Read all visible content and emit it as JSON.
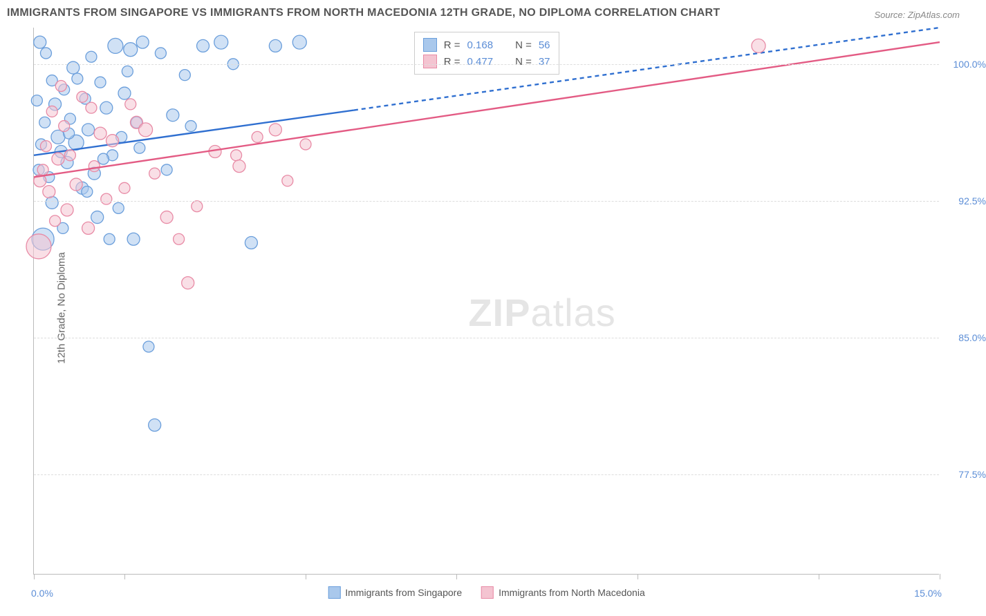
{
  "title": "IMMIGRANTS FROM SINGAPORE VS IMMIGRANTS FROM NORTH MACEDONIA 12TH GRADE, NO DIPLOMA CORRELATION CHART",
  "source": "Source: ZipAtlas.com",
  "y_axis_label": "12th Grade, No Diploma",
  "watermark_a": "ZIP",
  "watermark_b": "atlas",
  "chart": {
    "type": "scatter-correlation",
    "background_color": "#ffffff",
    "grid_color": "#dddddd",
    "axis_color": "#bbbbbb",
    "tick_label_color": "#5b8dd6",
    "xlim": [
      0.0,
      15.0
    ],
    "ylim": [
      72.0,
      102.0
    ],
    "x_start_label": "0.0%",
    "x_end_label": "15.0%",
    "x_ticks": [
      0.0,
      1.5,
      4.5,
      7.0,
      10.0,
      13.0,
      15.0
    ],
    "y_gridlines": [
      77.5,
      85.0,
      92.5,
      100.0
    ],
    "y_tick_labels": [
      "77.5%",
      "85.0%",
      "92.5%",
      "100.0%"
    ],
    "series": [
      {
        "key": "singapore",
        "label": "Immigrants from Singapore",
        "fill_color": "#a9c8ec",
        "stroke_color": "#6a9edb",
        "line_color": "#2f6fd0",
        "r_value": "0.168",
        "n_value": "56",
        "trend": {
          "x1": 0.0,
          "y1": 95.0,
          "x2": 15.0,
          "y2": 102.0,
          "dash_start_x": 5.3
        },
        "points": [
          {
            "x": 0.1,
            "y": 101.2,
            "r": 9
          },
          {
            "x": 0.2,
            "y": 100.6,
            "r": 8
          },
          {
            "x": 0.3,
            "y": 99.1,
            "r": 8
          },
          {
            "x": 0.35,
            "y": 97.8,
            "r": 9
          },
          {
            "x": 0.4,
            "y": 96.0,
            "r": 10
          },
          {
            "x": 0.45,
            "y": 95.2,
            "r": 9
          },
          {
            "x": 0.5,
            "y": 98.6,
            "r": 8
          },
          {
            "x": 0.55,
            "y": 94.6,
            "r": 9
          },
          {
            "x": 0.6,
            "y": 97.0,
            "r": 8
          },
          {
            "x": 0.65,
            "y": 99.8,
            "r": 9
          },
          {
            "x": 0.7,
            "y": 95.7,
            "r": 11
          },
          {
            "x": 0.8,
            "y": 93.2,
            "r": 9
          },
          {
            "x": 0.85,
            "y": 98.1,
            "r": 8
          },
          {
            "x": 0.9,
            "y": 96.4,
            "r": 9
          },
          {
            "x": 0.95,
            "y": 100.4,
            "r": 8
          },
          {
            "x": 1.0,
            "y": 94.0,
            "r": 9
          },
          {
            "x": 1.05,
            "y": 91.6,
            "r": 9
          },
          {
            "x": 1.1,
            "y": 99.0,
            "r": 8
          },
          {
            "x": 1.2,
            "y": 97.6,
            "r": 9
          },
          {
            "x": 1.3,
            "y": 95.0,
            "r": 8
          },
          {
            "x": 1.35,
            "y": 101.0,
            "r": 11
          },
          {
            "x": 1.4,
            "y": 92.1,
            "r": 8
          },
          {
            "x": 1.5,
            "y": 98.4,
            "r": 9
          },
          {
            "x": 1.6,
            "y": 100.8,
            "r": 10
          },
          {
            "x": 1.65,
            "y": 90.4,
            "r": 9
          },
          {
            "x": 1.7,
            "y": 96.8,
            "r": 8
          },
          {
            "x": 1.8,
            "y": 101.2,
            "r": 9
          },
          {
            "x": 1.9,
            "y": 84.5,
            "r": 8
          },
          {
            "x": 2.0,
            "y": 80.2,
            "r": 9
          },
          {
            "x": 2.1,
            "y": 100.6,
            "r": 8
          },
          {
            "x": 2.3,
            "y": 97.2,
            "r": 9
          },
          {
            "x": 2.5,
            "y": 99.4,
            "r": 8
          },
          {
            "x": 2.8,
            "y": 101.0,
            "r": 9
          },
          {
            "x": 3.1,
            "y": 101.2,
            "r": 10
          },
          {
            "x": 3.3,
            "y": 100.0,
            "r": 8
          },
          {
            "x": 3.6,
            "y": 90.2,
            "r": 9
          },
          {
            "x": 4.0,
            "y": 101.0,
            "r": 9
          },
          {
            "x": 4.4,
            "y": 101.2,
            "r": 10
          },
          {
            "x": 0.15,
            "y": 90.4,
            "r": 16
          },
          {
            "x": 0.25,
            "y": 93.8,
            "r": 8
          },
          {
            "x": 0.12,
            "y": 95.6,
            "r": 8
          },
          {
            "x": 0.3,
            "y": 92.4,
            "r": 9
          },
          {
            "x": 0.48,
            "y": 91.0,
            "r": 8
          },
          {
            "x": 0.58,
            "y": 96.2,
            "r": 8
          },
          {
            "x": 0.72,
            "y": 99.2,
            "r": 8
          },
          {
            "x": 0.88,
            "y": 93.0,
            "r": 8
          },
          {
            "x": 1.15,
            "y": 94.8,
            "r": 8
          },
          {
            "x": 1.25,
            "y": 90.4,
            "r": 8
          },
          {
            "x": 1.45,
            "y": 96.0,
            "r": 8
          },
          {
            "x": 1.55,
            "y": 99.6,
            "r": 8
          },
          {
            "x": 1.75,
            "y": 95.4,
            "r": 8
          },
          {
            "x": 2.2,
            "y": 94.2,
            "r": 8
          },
          {
            "x": 2.6,
            "y": 96.6,
            "r": 8
          },
          {
            "x": 0.05,
            "y": 98.0,
            "r": 8
          },
          {
            "x": 0.08,
            "y": 94.2,
            "r": 8
          },
          {
            "x": 0.18,
            "y": 96.8,
            "r": 8
          }
        ]
      },
      {
        "key": "north-macedonia",
        "label": "Immigrants from North Macedonia",
        "fill_color": "#f4c4d1",
        "stroke_color": "#e88aa5",
        "line_color": "#e35b84",
        "r_value": "0.477",
        "n_value": "37",
        "trend": {
          "x1": 0.0,
          "y1": 93.8,
          "x2": 15.0,
          "y2": 101.2
        },
        "points": [
          {
            "x": 0.1,
            "y": 93.6,
            "r": 9
          },
          {
            "x": 0.15,
            "y": 94.2,
            "r": 8
          },
          {
            "x": 0.2,
            "y": 95.5,
            "r": 8
          },
          {
            "x": 0.25,
            "y": 93.0,
            "r": 9
          },
          {
            "x": 0.3,
            "y": 97.4,
            "r": 8
          },
          {
            "x": 0.4,
            "y": 94.8,
            "r": 9
          },
          {
            "x": 0.5,
            "y": 96.6,
            "r": 8
          },
          {
            "x": 0.55,
            "y": 92.0,
            "r": 9
          },
          {
            "x": 0.6,
            "y": 95.0,
            "r": 8
          },
          {
            "x": 0.7,
            "y": 93.4,
            "r": 9
          },
          {
            "x": 0.8,
            "y": 98.2,
            "r": 8
          },
          {
            "x": 0.9,
            "y": 91.0,
            "r": 9
          },
          {
            "x": 1.0,
            "y": 94.4,
            "r": 8
          },
          {
            "x": 1.1,
            "y": 96.2,
            "r": 9
          },
          {
            "x": 1.2,
            "y": 92.6,
            "r": 8
          },
          {
            "x": 1.3,
            "y": 95.8,
            "r": 9
          },
          {
            "x": 1.5,
            "y": 93.2,
            "r": 8
          },
          {
            "x": 1.7,
            "y": 96.8,
            "r": 9
          },
          {
            "x": 1.85,
            "y": 96.4,
            "r": 10
          },
          {
            "x": 2.0,
            "y": 94.0,
            "r": 8
          },
          {
            "x": 2.2,
            "y": 91.6,
            "r": 9
          },
          {
            "x": 2.4,
            "y": 90.4,
            "r": 8
          },
          {
            "x": 2.55,
            "y": 88.0,
            "r": 9
          },
          {
            "x": 2.7,
            "y": 92.2,
            "r": 8
          },
          {
            "x": 3.0,
            "y": 95.2,
            "r": 9
          },
          {
            "x": 3.35,
            "y": 95.0,
            "r": 8
          },
          {
            "x": 3.4,
            "y": 94.4,
            "r": 9
          },
          {
            "x": 3.7,
            "y": 96.0,
            "r": 8
          },
          {
            "x": 4.0,
            "y": 96.4,
            "r": 9
          },
          {
            "x": 4.2,
            "y": 93.6,
            "r": 8
          },
          {
            "x": 4.5,
            "y": 95.6,
            "r": 8
          },
          {
            "x": 0.08,
            "y": 90.0,
            "r": 18
          },
          {
            "x": 0.35,
            "y": 91.4,
            "r": 8
          },
          {
            "x": 0.45,
            "y": 98.8,
            "r": 8
          },
          {
            "x": 0.95,
            "y": 97.6,
            "r": 8
          },
          {
            "x": 12.0,
            "y": 101.0,
            "r": 10
          },
          {
            "x": 1.6,
            "y": 97.8,
            "r": 8
          }
        ]
      }
    ]
  },
  "corr_labels": {
    "r_prefix": "R =",
    "n_prefix": "N ="
  }
}
